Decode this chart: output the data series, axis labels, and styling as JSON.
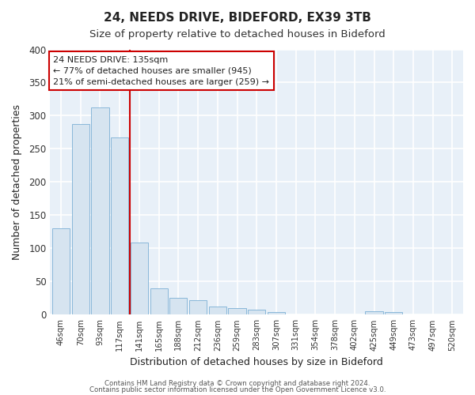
{
  "title": "24, NEEDS DRIVE, BIDEFORD, EX39 3TB",
  "subtitle": "Size of property relative to detached houses in Bideford",
  "xlabel": "Distribution of detached houses by size in Bideford",
  "ylabel": "Number of detached properties",
  "categories": [
    "46sqm",
    "70sqm",
    "93sqm",
    "117sqm",
    "141sqm",
    "165sqm",
    "188sqm",
    "212sqm",
    "236sqm",
    "259sqm",
    "283sqm",
    "307sqm",
    "331sqm",
    "354sqm",
    "378sqm",
    "402sqm",
    "425sqm",
    "449sqm",
    "473sqm",
    "497sqm",
    "520sqm"
  ],
  "values": [
    130,
    287,
    313,
    267,
    109,
    40,
    25,
    22,
    13,
    10,
    8,
    4,
    0,
    0,
    0,
    0,
    5,
    4,
    0,
    0,
    0
  ],
  "bar_color": "#d6e4f0",
  "bar_edge_color": "#7bafd4",
  "vline_color": "#cc0000",
  "vline_x_index": 3.5,
  "ylim": [
    0,
    400
  ],
  "yticks": [
    0,
    50,
    100,
    150,
    200,
    250,
    300,
    350,
    400
  ],
  "annotation_text": "24 NEEDS DRIVE: 135sqm\n← 77% of detached houses are smaller (945)\n21% of semi-detached houses are larger (259) →",
  "annotation_box_color": "#ffffff",
  "annotation_box_edge": "#cc0000",
  "footer1": "Contains HM Land Registry data © Crown copyright and database right 2024.",
  "footer2": "Contains public sector information licensed under the Open Government Licence v3.0.",
  "background_color": "#ffffff",
  "plot_background": "#e8f0f8",
  "title_fontsize": 11,
  "subtitle_fontsize": 9.5,
  "grid_color": "#ffffff",
  "grid_linewidth": 1.2
}
